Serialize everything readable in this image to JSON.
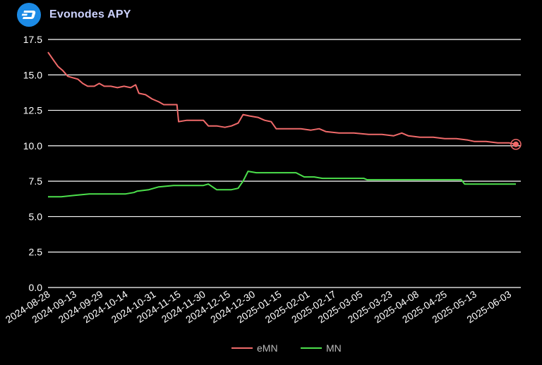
{
  "app": {
    "title": "Evonodes APY",
    "logo_icon": "dash-logo-icon"
  },
  "colors": {
    "background": "#000000",
    "grid": "#ffffff",
    "eMN": "#f06a6a",
    "MN": "#4ce04c",
    "title": "#cdd3ff",
    "logo": "#1c8be6"
  },
  "chart_data": {
    "type": "line",
    "title": "Evonodes APY",
    "xlabel": "",
    "ylabel": "",
    "ylim": [
      0,
      17.5
    ],
    "yticks": [
      "0.0",
      "2.5",
      "5.0",
      "7.5",
      "10.0",
      "12.5",
      "15.0",
      "17.5"
    ],
    "xticks": [
      "2024-08-28",
      "2024-09-13",
      "2024-09-29",
      "2024-10-14",
      "2024-10-31",
      "2024-11-15",
      "2024-11-30",
      "2024-12-15",
      "2024-12-30",
      "2025-01-15",
      "2025-02-01",
      "2025-02-17",
      "2025-03-05",
      "2025-03-23",
      "2025-04-08",
      "2025-04-25",
      "2025-05-13",
      "2025-06-03"
    ],
    "x_range": [
      "2024-08-28",
      "2025-06-10"
    ],
    "grid": true,
    "legend_position": "bottom",
    "last_point_marker": "eMN",
    "series": [
      {
        "name": "eMN",
        "color": "#f06a6a",
        "points": [
          [
            "2024-08-28",
            16.6
          ],
          [
            "2024-08-31",
            16.1
          ],
          [
            "2024-09-03",
            15.6
          ],
          [
            "2024-09-06",
            15.3
          ],
          [
            "2024-09-09",
            14.9
          ],
          [
            "2024-09-12",
            14.8
          ],
          [
            "2024-09-15",
            14.7
          ],
          [
            "2024-09-18",
            14.4
          ],
          [
            "2024-09-21",
            14.2
          ],
          [
            "2024-09-25",
            14.2
          ],
          [
            "2024-09-28",
            14.4
          ],
          [
            "2024-10-01",
            14.2
          ],
          [
            "2024-10-05",
            14.2
          ],
          [
            "2024-10-09",
            14.1
          ],
          [
            "2024-10-13",
            14.2
          ],
          [
            "2024-10-17",
            14.1
          ],
          [
            "2024-10-20",
            14.3
          ],
          [
            "2024-10-22",
            13.7
          ],
          [
            "2024-10-26",
            13.6
          ],
          [
            "2024-10-30",
            13.3
          ],
          [
            "2024-11-03",
            13.1
          ],
          [
            "2024-11-06",
            12.9
          ],
          [
            "2024-11-10",
            12.9
          ],
          [
            "2024-11-14",
            12.9
          ],
          [
            "2024-11-15",
            11.7
          ],
          [
            "2024-11-20",
            11.8
          ],
          [
            "2024-11-25",
            11.8
          ],
          [
            "2024-11-30",
            11.8
          ],
          [
            "2024-12-03",
            11.4
          ],
          [
            "2024-12-08",
            11.4
          ],
          [
            "2024-12-13",
            11.3
          ],
          [
            "2024-12-17",
            11.4
          ],
          [
            "2024-12-21",
            11.6
          ],
          [
            "2024-12-24",
            12.2
          ],
          [
            "2024-12-28",
            12.1
          ],
          [
            "2025-01-02",
            12.0
          ],
          [
            "2025-01-06",
            11.8
          ],
          [
            "2025-01-10",
            11.7
          ],
          [
            "2025-01-13",
            11.2
          ],
          [
            "2025-01-20",
            11.2
          ],
          [
            "2025-01-28",
            11.2
          ],
          [
            "2025-02-03",
            11.1
          ],
          [
            "2025-02-08",
            11.2
          ],
          [
            "2025-02-12",
            11.0
          ],
          [
            "2025-02-20",
            10.9
          ],
          [
            "2025-03-01",
            10.9
          ],
          [
            "2025-03-10",
            10.8
          ],
          [
            "2025-03-18",
            10.8
          ],
          [
            "2025-03-25",
            10.7
          ],
          [
            "2025-03-30",
            10.9
          ],
          [
            "2025-04-03",
            10.7
          ],
          [
            "2025-04-10",
            10.6
          ],
          [
            "2025-04-18",
            10.6
          ],
          [
            "2025-04-25",
            10.5
          ],
          [
            "2025-05-02",
            10.5
          ],
          [
            "2025-05-09",
            10.4
          ],
          [
            "2025-05-13",
            10.3
          ],
          [
            "2025-05-20",
            10.3
          ],
          [
            "2025-05-27",
            10.2
          ],
          [
            "2025-06-03",
            10.2
          ],
          [
            "2025-06-07",
            10.1
          ]
        ]
      },
      {
        "name": "MN",
        "color": "#4ce04c",
        "points": [
          [
            "2024-08-28",
            6.4
          ],
          [
            "2024-09-05",
            6.4
          ],
          [
            "2024-09-13",
            6.5
          ],
          [
            "2024-09-22",
            6.6
          ],
          [
            "2024-10-01",
            6.6
          ],
          [
            "2024-10-08",
            6.6
          ],
          [
            "2024-10-14",
            6.6
          ],
          [
            "2024-10-19",
            6.7
          ],
          [
            "2024-10-21",
            6.8
          ],
          [
            "2024-10-28",
            6.9
          ],
          [
            "2024-11-03",
            7.1
          ],
          [
            "2024-11-12",
            7.2
          ],
          [
            "2024-11-20",
            7.2
          ],
          [
            "2024-11-30",
            7.2
          ],
          [
            "2024-12-03",
            7.3
          ],
          [
            "2024-12-08",
            6.9
          ],
          [
            "2024-12-13",
            6.9
          ],
          [
            "2024-12-17",
            6.9
          ],
          [
            "2024-12-21",
            7.0
          ],
          [
            "2024-12-24",
            7.5
          ],
          [
            "2024-12-27",
            8.2
          ],
          [
            "2025-01-01",
            8.1
          ],
          [
            "2025-01-10",
            8.1
          ],
          [
            "2025-01-20",
            8.1
          ],
          [
            "2025-01-25",
            8.1
          ],
          [
            "2025-01-30",
            7.8
          ],
          [
            "2025-02-05",
            7.8
          ],
          [
            "2025-02-10",
            7.7
          ],
          [
            "2025-02-20",
            7.7
          ],
          [
            "2025-02-28",
            7.7
          ],
          [
            "2025-03-07",
            7.7
          ],
          [
            "2025-03-09",
            7.6
          ],
          [
            "2025-03-20",
            7.6
          ],
          [
            "2025-03-30",
            7.6
          ],
          [
            "2025-04-08",
            7.6
          ],
          [
            "2025-04-18",
            7.6
          ],
          [
            "2025-04-28",
            7.6
          ],
          [
            "2025-05-05",
            7.6
          ],
          [
            "2025-05-07",
            7.3
          ],
          [
            "2025-05-15",
            7.3
          ],
          [
            "2025-05-25",
            7.3
          ],
          [
            "2025-06-03",
            7.3
          ],
          [
            "2025-06-07",
            7.3
          ]
        ]
      }
    ]
  }
}
